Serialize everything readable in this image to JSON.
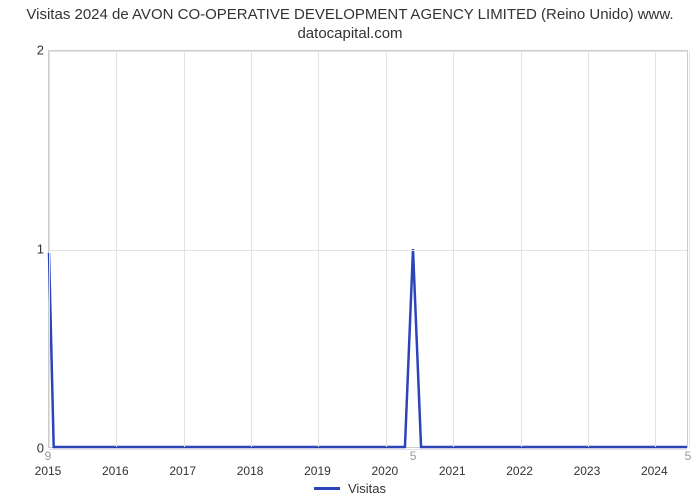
{
  "chart": {
    "type": "line",
    "title_line1": "Visitas 2024 de AVON CO-OPERATIVE DEVELOPMENT AGENCY LIMITED (Reino Unido) www.",
    "title_line2": "datocapital.com",
    "title_fontsize": 15,
    "title_color": "#333333",
    "background_color": "#ffffff",
    "grid_color": "#e3e3e3",
    "border_color": "#cccccc",
    "axis_label_color": "#333333",
    "cursor_label_color": "#999999",
    "axis_fontsize": 13,
    "line_color": "#2d44b8",
    "line_width": 2.5,
    "ylim": [
      0,
      2
    ],
    "yticks": [
      0,
      1,
      2
    ],
    "xlim": [
      2015,
      2024.5
    ],
    "xticks": [
      2015,
      2016,
      2017,
      2018,
      2019,
      2020,
      2021,
      2022,
      2023,
      2024
    ],
    "xtick_labels": [
      "2015",
      "2016",
      "2017",
      "2018",
      "2019",
      "2020",
      "2021",
      "2022",
      "2023",
      "2024"
    ],
    "grid_v_extra": [
      2024.5
    ],
    "cursor_markers": [
      {
        "x": 2015,
        "label": "9"
      },
      {
        "x": 2020.42,
        "label": "5"
      },
      {
        "x": 2024.5,
        "label": "5"
      }
    ],
    "series": [
      {
        "name": "Visitas",
        "color": "#2d44b8",
        "points": [
          [
            2015.0,
            0.98
          ],
          [
            2015.07,
            0.0
          ],
          [
            2020.3,
            0.0
          ],
          [
            2020.42,
            1.0
          ],
          [
            2020.54,
            0.0
          ],
          [
            2024.5,
            0.0
          ]
        ]
      }
    ],
    "legend_label": "Visitas"
  }
}
